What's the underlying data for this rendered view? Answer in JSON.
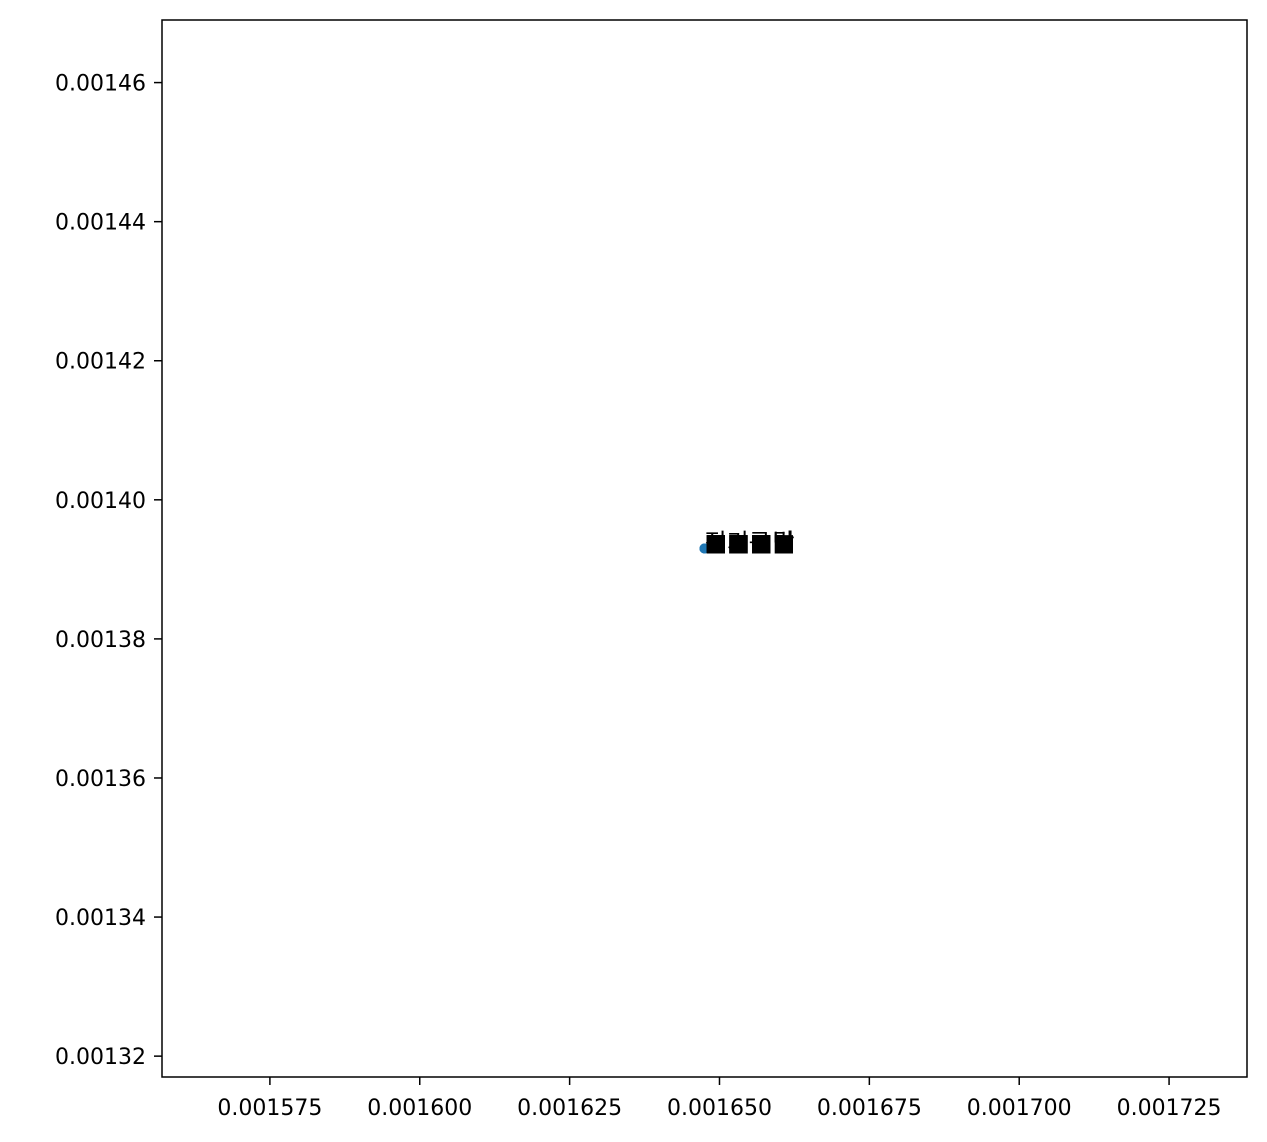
{
  "chart_data": {
    "type": "scatter",
    "title": "",
    "xlabel": "",
    "ylabel": "",
    "xlim": [
      0.001557,
      0.001738
    ],
    "ylim": [
      0.001317,
      0.001469
    ],
    "x_ticks": [
      {
        "value": 0.001575,
        "label": "0.001575"
      },
      {
        "value": 0.0016,
        "label": "0.001600"
      },
      {
        "value": 0.001625,
        "label": "0.001625"
      },
      {
        "value": 0.00165,
        "label": "0.001650"
      },
      {
        "value": 0.001675,
        "label": "0.001675"
      },
      {
        "value": 0.0017,
        "label": "0.001700"
      },
      {
        "value": 0.001725,
        "label": "0.001725"
      }
    ],
    "y_ticks": [
      {
        "value": 0.00132,
        "label": "0.00132"
      },
      {
        "value": 0.00134,
        "label": "0.00134"
      },
      {
        "value": 0.00136,
        "label": "0.00136"
      },
      {
        "value": 0.00138,
        "label": "0.00138"
      },
      {
        "value": 0.0014,
        "label": "0.00140"
      },
      {
        "value": 0.00142,
        "label": "0.00142"
      },
      {
        "value": 0.00144,
        "label": "0.00144"
      },
      {
        "value": 0.00146,
        "label": "0.00146"
      }
    ],
    "grid": false,
    "legend": "none",
    "point_color": "#1f77b4",
    "points": [
      {
        "x": 0.0016475,
        "y": 0.001393,
        "label": "전기구"
      },
      {
        "x": 0.0016475,
        "y": 0.001393,
        "label": "■■■탁"
      },
      {
        "x": 0.0016475,
        "y": 0.001393,
        "label": "■■■■"
      },
      {
        "x": 0.0016475,
        "y": 0.001393,
        "label": "■■■법"
      }
    ]
  }
}
